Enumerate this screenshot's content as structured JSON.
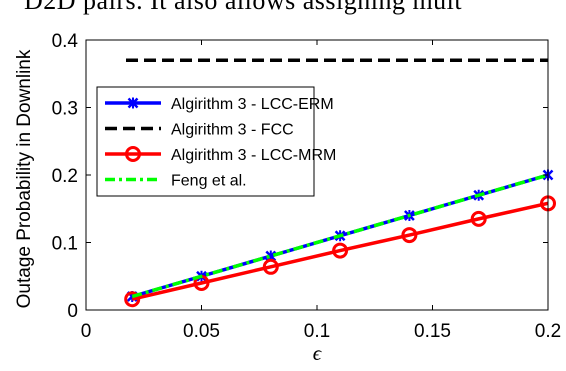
{
  "header_fragment": "D2D pairs. It also allows assigning mult",
  "chart_data": {
    "type": "line",
    "xlabel": "ϵ",
    "ylabel": "Outage Probability in Downlink",
    "xlim": [
      0,
      0.2
    ],
    "ylim": [
      0,
      0.4
    ],
    "xticks": [
      0,
      0.05,
      0.1,
      0.15,
      0.2
    ],
    "xtick_labels": [
      "0",
      "0.05",
      "0.1",
      "0.15",
      "0.2"
    ],
    "yticks": [
      0,
      0.1,
      0.2,
      0.3,
      0.4
    ],
    "ytick_labels": [
      "0",
      "0.1",
      "0.2",
      "0.3",
      "0.4"
    ],
    "grid": false,
    "legend_position": "upper-left",
    "series": [
      {
        "name": "Algirithm 3 - LCC-ERM",
        "color": "#0000ff",
        "line_style": "solid",
        "marker": "x-star",
        "x": [
          0.02,
          0.05,
          0.08,
          0.11,
          0.14,
          0.17,
          0.2
        ],
        "y": [
          0.02,
          0.05,
          0.08,
          0.11,
          0.14,
          0.17,
          0.2
        ]
      },
      {
        "name": "Algirithm 3 - FCC",
        "color": "#000000",
        "line_style": "dashed",
        "marker": "none",
        "x": [
          0.02,
          0.05,
          0.08,
          0.11,
          0.14,
          0.17,
          0.2
        ],
        "y": [
          0.37,
          0.37,
          0.37,
          0.37,
          0.37,
          0.37,
          0.37
        ]
      },
      {
        "name": "Algirithm 3 - LCC-MRM",
        "color": "#ff0000",
        "line_style": "solid",
        "marker": "circle",
        "x": [
          0.02,
          0.05,
          0.08,
          0.11,
          0.14,
          0.17,
          0.2
        ],
        "y": [
          0.016,
          0.04,
          0.064,
          0.088,
          0.111,
          0.135,
          0.158
        ]
      },
      {
        "name": "Feng et al.",
        "color": "#00ff00",
        "line_style": "dashdot",
        "marker": "none",
        "x": [
          0.02,
          0.05,
          0.08,
          0.11,
          0.14,
          0.17,
          0.2
        ],
        "y": [
          0.02,
          0.05,
          0.08,
          0.11,
          0.14,
          0.17,
          0.2
        ]
      }
    ]
  }
}
